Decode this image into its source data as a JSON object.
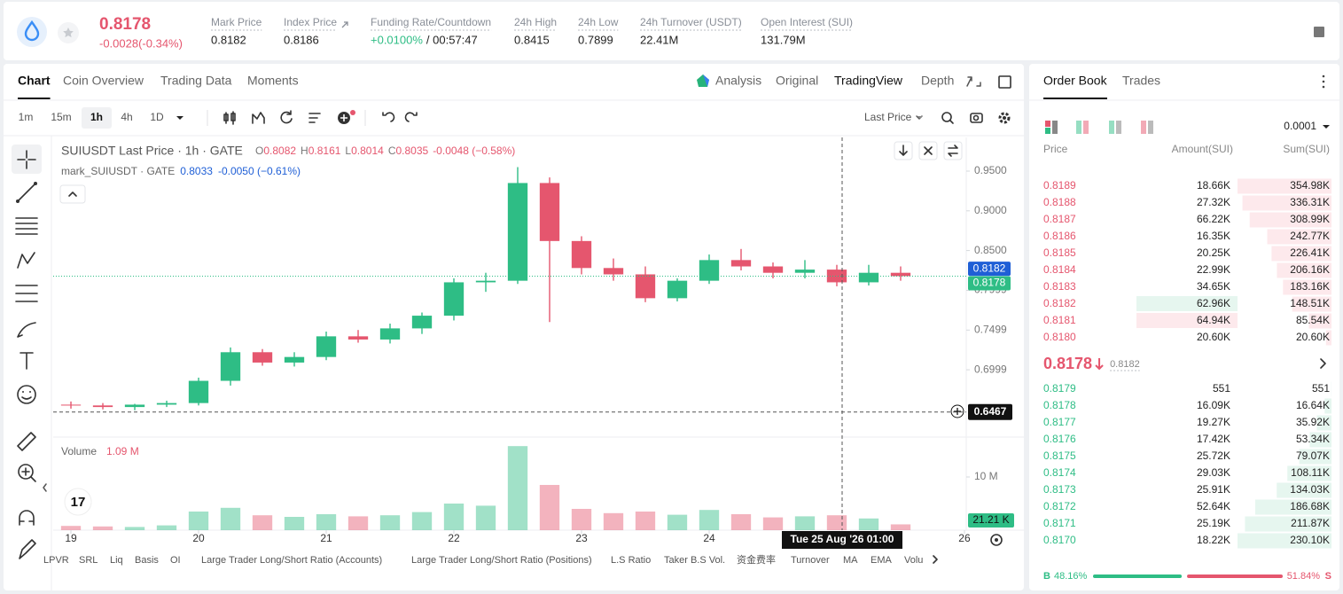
{
  "header": {
    "price": "0.8178",
    "change": "-0.0028(-0.34%)",
    "stats": [
      {
        "label": "Mark Price",
        "value": "0.8182"
      },
      {
        "label": "Index Price",
        "value": "0.8186"
      },
      {
        "label": "Funding Rate/Countdown",
        "value": "+0.0100%",
        "extra": "/ 00:57:47"
      },
      {
        "label": "24h High",
        "value": "0.8415"
      },
      {
        "label": "24h Low",
        "value": "0.7899"
      },
      {
        "label": "24h Turnover (USDT)",
        "value": "22.41M"
      },
      {
        "label": "Open Interest (SUI)",
        "value": "131.79M"
      }
    ]
  },
  "chart_tabs": [
    "Chart",
    "Coin Overview",
    "Trading Data",
    "Moments"
  ],
  "view_tabs": [
    "Analysis",
    "Original",
    "TradingView",
    "Depth"
  ],
  "intervals": [
    "1m",
    "15m",
    "1h",
    "4h",
    "1D"
  ],
  "price_source": "Last Price",
  "legend": {
    "title": "SUIUSDT Last Price · 1h · GATE",
    "ohlc": [
      {
        "key": "O",
        "value": "0.8082"
      },
      {
        "key": "H",
        "value": "0.8161"
      },
      {
        "key": "L",
        "value": "0.8014"
      },
      {
        "key": "C",
        "value": "0.8035"
      }
    ],
    "change": "-0.0048 (−0.58%)",
    "mark_title": "mark_SUIUSDT · GATE",
    "mark_value": "0.8033",
    "mark_change": "-0.0050 (−0.61%)",
    "volume_title": "Volume",
    "volume_value": "1.09 M"
  },
  "chart_data": {
    "type": "candlestick",
    "x": [
      19.0,
      19.25,
      19.5,
      19.75,
      20.0,
      20.25,
      20.5,
      20.75,
      21.0,
      21.25,
      21.5,
      21.75,
      22.0,
      22.25,
      22.5,
      22.75,
      23.0,
      23.25,
      23.5,
      23.75,
      24.0,
      24.25,
      24.5,
      24.75,
      25.0,
      25.25,
      25.5
    ],
    "open": [
      0.656,
      0.655,
      0.653,
      0.656,
      0.658,
      0.686,
      0.722,
      0.709,
      0.716,
      0.742,
      0.738,
      0.752,
      0.768,
      0.81,
      0.812,
      0.935,
      0.862,
      0.828,
      0.82,
      0.79,
      0.812,
      0.838,
      0.83,
      0.822,
      0.826,
      0.81,
      0.822
    ],
    "high": [
      0.66,
      0.658,
      0.657,
      0.661,
      0.69,
      0.728,
      0.726,
      0.722,
      0.748,
      0.75,
      0.758,
      0.772,
      0.815,
      0.822,
      0.955,
      0.942,
      0.868,
      0.84,
      0.83,
      0.815,
      0.845,
      0.852,
      0.835,
      0.838,
      0.832,
      0.832,
      0.83
    ],
    "low": [
      0.651,
      0.65,
      0.649,
      0.653,
      0.655,
      0.68,
      0.705,
      0.704,
      0.712,
      0.734,
      0.733,
      0.745,
      0.762,
      0.798,
      0.808,
      0.76,
      0.82,
      0.812,
      0.785,
      0.786,
      0.808,
      0.825,
      0.815,
      0.815,
      0.805,
      0.806,
      0.812
    ],
    "close": [
      0.655,
      0.653,
      0.656,
      0.658,
      0.686,
      0.722,
      0.709,
      0.716,
      0.742,
      0.738,
      0.752,
      0.768,
      0.81,
      0.812,
      0.935,
      0.862,
      0.828,
      0.82,
      0.79,
      0.812,
      0.838,
      0.83,
      0.822,
      0.826,
      0.81,
      0.822,
      0.8178
    ],
    "volume": [
      800000,
      700000,
      600000,
      900000,
      3500000,
      4200000,
      2800000,
      2500000,
      3000000,
      2600000,
      2800000,
      3400000,
      5000000,
      4600000,
      15800000,
      8500000,
      4000000,
      3200000,
      3500000,
      2900000,
      3800000,
      3000000,
      2400000,
      2600000,
      2800000,
      2200000,
      1090000
    ],
    "up_color": "#2ebd85",
    "down_color": "#e5566e",
    "xlim": [
      18.861,
      26.014
    ],
    "xticks": [
      19,
      20,
      21,
      22,
      23,
      24,
      26
    ],
    "ylim": [
      0.6163,
      0.9924
    ],
    "yticks": [
      {
        "value": 0.95,
        "label": "0.9500"
      },
      {
        "value": 0.9,
        "label": "0.9000"
      },
      {
        "value": 0.85,
        "label": "0.8500"
      },
      {
        "value": 0.7999,
        "label": "0.7999"
      },
      {
        "value": 0.7499,
        "label": "0.7499"
      },
      {
        "value": 0.6999,
        "label": "0.6999"
      }
    ],
    "volume_ylim": [
      0,
      17330000
    ],
    "volume_yticks": [
      {
        "value": 10000000,
        "label": "10 M"
      }
    ],
    "price_lines": [
      {
        "value": 0.8182,
        "label": "0.8182",
        "color": "#1f5fd6"
      },
      {
        "value": 0.8178,
        "label": "0.8178",
        "color": "#2ebd85"
      }
    ],
    "crosshair": {
      "price": {
        "value": 0.6467,
        "label": "0.6467"
      },
      "time": {
        "value": 25.0417,
        "label": "Tue 25 Aug '26 01:00"
      },
      "volume_label": "21.21 K"
    }
  },
  "indicators": [
    "LPVR",
    "SRL",
    "Liq",
    "Basis",
    "OI",
    "Large Trader Long/Short Ratio (Accounts)",
    "Large Trader Long/Short Ratio (Positions)",
    "L.S Ratio",
    "Taker B.S Vol.",
    "资金费率",
    "Turnover",
    "MA",
    "EMA",
    "Volu"
  ],
  "order_book": {
    "tabs": [
      "Order Book",
      "Trades"
    ],
    "precision": "0.0001",
    "columns": [
      "Price",
      "Amount(SUI)",
      "Sum(SUI)"
    ],
    "asks": [
      {
        "price": "0.8189",
        "amount": "18.66K",
        "sum": {
          "value": 354980,
          "label": "354.98K"
        }
      },
      {
        "price": "0.8188",
        "amount": "27.32K",
        "sum": {
          "value": 336310,
          "label": "336.31K"
        }
      },
      {
        "price": "0.8187",
        "amount": "66.22K",
        "sum": {
          "value": 308990,
          "label": "308.99K"
        }
      },
      {
        "price": "0.8186",
        "amount": "16.35K",
        "sum": {
          "value": 242770,
          "label": "242.77K"
        }
      },
      {
        "price": "0.8185",
        "amount": "20.25K",
        "sum": {
          "value": 226410,
          "label": "226.41K"
        }
      },
      {
        "price": "0.8184",
        "amount": "22.99K",
        "sum": {
          "value": 206160,
          "label": "206.16K"
        }
      },
      {
        "price": "0.8183",
        "amount": "34.65K",
        "sum": {
          "value": 183160,
          "label": "183.16K"
        }
      },
      {
        "price": "0.8182",
        "amount": "62.96K",
        "sum": {
          "value": 148510,
          "label": "148.51K"
        }
      },
      {
        "price": "0.8181",
        "amount": "64.94K",
        "sum": {
          "value": 85540,
          "label": "85.54K"
        }
      },
      {
        "price": "0.8180",
        "amount": "20.60K",
        "sum": {
          "value": 20600,
          "label": "20.60K"
        }
      }
    ],
    "last_price": "0.8178",
    "mark_price": "0.8182",
    "bids": [
      {
        "price": "0.8179",
        "amount": "551",
        "sum": 551
      },
      {
        "price": "0.8178",
        "amount": "16.09K",
        "sum": {
          "value": 16640,
          "label": "16.64K"
        }
      },
      {
        "price": "0.8177",
        "amount": "19.27K",
        "sum": {
          "value": 35920,
          "label": "35.92K"
        }
      },
      {
        "price": "0.8176",
        "amount": "17.42K",
        "sum": {
          "value": 53340,
          "label": "53.34K"
        }
      },
      {
        "price": "0.8175",
        "amount": "25.72K",
        "sum": {
          "value": 79070,
          "label": "79.07K"
        }
      },
      {
        "price": "0.8174",
        "amount": "29.03K",
        "sum": {
          "value": 108110,
          "label": "108.11K"
        }
      },
      {
        "price": "0.8173",
        "amount": "25.91K",
        "sum": {
          "value": 134030,
          "label": "134.03K"
        }
      },
      {
        "price": "0.8172",
        "amount": "52.64K",
        "sum": {
          "value": 186680,
          "label": "186.68K"
        }
      },
      {
        "price": "0.8171",
        "amount": "25.19K",
        "sum": {
          "value": 211870,
          "label": "211.87K"
        }
      },
      {
        "price": "0.8170",
        "amount": "18.22K",
        "sum": {
          "value": 230100,
          "label": "230.10K"
        }
      }
    ],
    "buy_label": "B",
    "sell_label": "S",
    "buy_ratio": {
      "value": 48.16,
      "label": "48.16%"
    },
    "sell_ratio": {
      "value": 51.84,
      "label": "51.84%"
    }
  }
}
